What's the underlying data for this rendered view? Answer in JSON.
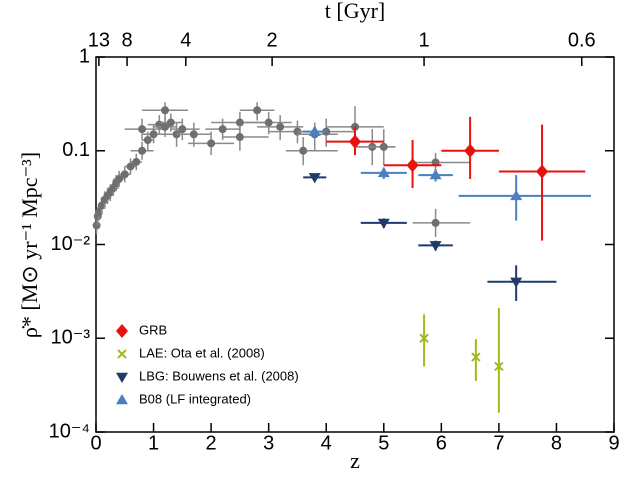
{
  "chart_data": {
    "type": "scatter",
    "xlabel": "z",
    "ylabel": "ρ̇* [M⊙ yr⁻¹ Mpc⁻³]",
    "x2label": "t [Gyr]",
    "xlim": [
      0,
      9
    ],
    "xticks": [
      0,
      1,
      2,
      3,
      4,
      5,
      6,
      7,
      8,
      9
    ],
    "ylim": [
      0.0001,
      1
    ],
    "yscale": "log",
    "yticks": [
      {
        "value": 0.0001,
        "label": "10⁻⁴"
      },
      {
        "value": 0.001,
        "label": "10⁻³"
      },
      {
        "value": 0.01,
        "label": "10⁻²"
      },
      0.1,
      1
    ],
    "x2ticks": [
      {
        "value": 0.05,
        "label": "13"
      },
      {
        "value": 0.54,
        "label": "8"
      },
      {
        "value": 1.56,
        "label": "4"
      },
      {
        "value": 3.06,
        "label": "2"
      },
      {
        "value": 5.7,
        "label": "1"
      },
      {
        "value": 8.44,
        "label": "0.6"
      }
    ],
    "legend": "lower left",
    "series": [
      {
        "color": "#6f6f6f",
        "marker": "circle",
        "x": [
          0.01,
          0.03,
          0.05,
          0.1,
          0.15,
          0.2,
          0.25,
          0.3,
          0.35,
          0.4,
          0.5,
          0.6,
          0.7,
          0.8,
          0.8,
          0.9,
          1.0,
          1.1,
          1.2,
          1.2,
          1.3,
          1.4,
          1.5,
          1.7,
          2.0,
          2.2,
          2.5,
          2.5,
          2.8,
          3.0,
          3.2,
          3.5,
          3.6,
          3.8,
          4.0,
          4.5,
          4.8,
          5.0,
          5.9,
          5.9
        ],
        "values": [
          0.016,
          0.02,
          0.022,
          0.026,
          0.03,
          0.033,
          0.036,
          0.04,
          0.045,
          0.05,
          0.056,
          0.068,
          0.076,
          0.1,
          0.17,
          0.13,
          0.15,
          0.19,
          0.18,
          0.27,
          0.2,
          0.15,
          0.17,
          0.15,
          0.12,
          0.17,
          0.2,
          0.14,
          0.27,
          0.2,
          0.18,
          0.16,
          0.1,
          0.15,
          0.16,
          0.18,
          0.11,
          0.11,
          0.017,
          0.075
        ],
        "x_low": [
          0,
          0.01,
          0.02,
          0.05,
          0.1,
          0.15,
          0.2,
          0.2,
          0.3,
          0.3,
          0.4,
          0.5,
          0.6,
          0.6,
          0.5,
          0.8,
          0.8,
          0.9,
          1.0,
          0.8,
          1.1,
          1.2,
          1.3,
          1.4,
          1.6,
          1.9,
          2.0,
          2.2,
          2.5,
          2.6,
          2.8,
          3.0,
          3.3,
          3.5,
          3.5,
          4.0,
          4.5,
          4.5,
          5.5,
          5.5
        ],
        "x_high": [
          0.02,
          0.05,
          0.1,
          0.15,
          0.2,
          0.25,
          0.3,
          0.4,
          0.4,
          0.5,
          0.6,
          0.7,
          0.8,
          1.0,
          1.2,
          1.0,
          1.2,
          1.3,
          1.4,
          1.6,
          1.5,
          1.6,
          1.8,
          2.0,
          2.4,
          2.5,
          3.0,
          3.0,
          3.1,
          3.4,
          3.6,
          4.0,
          4.2,
          4.2,
          4.5,
          5.0,
          5.2,
          5.2,
          6.5,
          6.5
        ],
        "y_low": [
          0.013,
          0.016,
          0.018,
          0.021,
          0.024,
          0.027,
          0.029,
          0.033,
          0.037,
          0.041,
          0.046,
          0.056,
          0.062,
          0.08,
          0.13,
          0.1,
          0.12,
          0.15,
          0.14,
          0.21,
          0.16,
          0.11,
          0.13,
          0.11,
          0.09,
          0.13,
          0.15,
          0.1,
          0.21,
          0.15,
          0.13,
          0.12,
          0.07,
          0.1,
          0.11,
          0.1,
          0.07,
          0.07,
          0.012,
          0.06
        ],
        "y_high": [
          0.02,
          0.025,
          0.027,
          0.032,
          0.037,
          0.04,
          0.044,
          0.049,
          0.055,
          0.061,
          0.068,
          0.083,
          0.093,
          0.125,
          0.22,
          0.16,
          0.19,
          0.24,
          0.23,
          0.33,
          0.25,
          0.2,
          0.22,
          0.2,
          0.16,
          0.22,
          0.26,
          0.19,
          0.33,
          0.26,
          0.24,
          0.21,
          0.14,
          0.2,
          0.22,
          0.3,
          0.17,
          0.17,
          0.024,
          0.095
        ]
      },
      {
        "name": "B08 (LF integrated)",
        "color": "#4a7fc1",
        "marker": "triangle-up",
        "x": [
          3.8,
          5.0,
          5.9,
          7.3
        ],
        "values": [
          0.16,
          0.058,
          0.055,
          0.033
        ],
        "x_low": [
          3.6,
          4.6,
          5.6,
          6.3
        ],
        "x_high": [
          4.0,
          5.4,
          6.2,
          8.6
        ],
        "y_low": [
          0.14,
          0.05,
          0.047,
          0.018
        ],
        "y_high": [
          0.18,
          0.066,
          0.063,
          0.055
        ]
      },
      {
        "name": "LBG:  Bouwens et al. (2008)",
        "color": "#1f3a6b",
        "marker": "triangle-down",
        "x": [
          3.8,
          5.0,
          5.9,
          7.3
        ],
        "values": [
          0.052,
          0.017,
          0.0098,
          0.004
        ],
        "x_low": [
          3.6,
          4.6,
          5.6,
          6.8
        ],
        "x_high": [
          4.0,
          5.4,
          6.2,
          8.0
        ],
        "y_low": [
          0.047,
          0.015,
          0.0086,
          0.0025
        ],
        "y_high": [
          0.057,
          0.019,
          0.011,
          0.006
        ]
      },
      {
        "name": "LAE:  Ota et al. (2008)",
        "color": "#a6b81e",
        "marker": "x",
        "x": [
          5.7,
          6.6,
          7.0
        ],
        "values": [
          0.001,
          0.00063,
          0.0005
        ],
        "x_low": [
          5.7,
          6.6,
          7.0
        ],
        "x_high": [
          5.7,
          6.6,
          7.0
        ],
        "y_low": [
          0.0005,
          0.00035,
          0.00016
        ],
        "y_high": [
          0.0018,
          0.00098,
          0.0021
        ]
      },
      {
        "name": "GRB",
        "color": "#e8120c",
        "marker": "diamond",
        "x": [
          4.5,
          5.5,
          6.5,
          7.75
        ],
        "values": [
          0.125,
          0.07,
          0.1,
          0.06
        ],
        "x_low": [
          4.0,
          5.0,
          6.0,
          7.0
        ],
        "x_high": [
          5.0,
          6.0,
          7.0,
          8.5
        ],
        "y_low": [
          0.09,
          0.04,
          0.05,
          0.011
        ],
        "y_high": [
          0.18,
          0.13,
          0.23,
          0.19
        ]
      }
    ]
  }
}
